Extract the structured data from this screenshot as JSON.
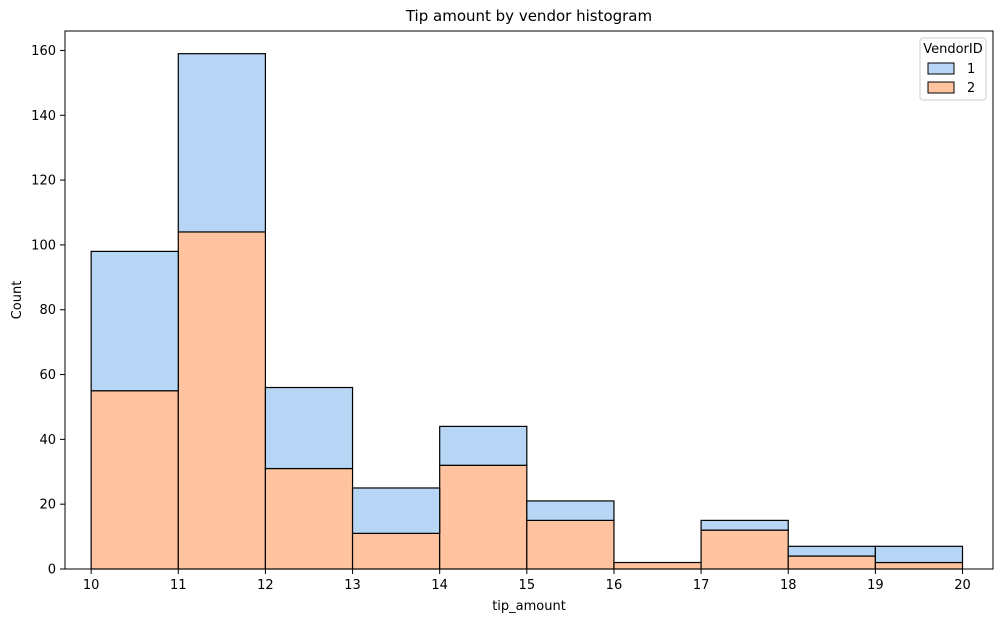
{
  "chart_data": {
    "type": "bar",
    "stacked": true,
    "title": "Tip amount by vendor histogram",
    "xlabel": "tip_amount",
    "ylabel": "Count",
    "xlim": [
      9.7,
      20.35
    ],
    "ylim": [
      0,
      166
    ],
    "x_ticks": [
      10,
      11,
      12,
      13,
      14,
      15,
      16,
      17,
      18,
      19,
      20
    ],
    "y_ticks": [
      0,
      20,
      40,
      60,
      80,
      100,
      120,
      140,
      160
    ],
    "bin_edges": [
      10,
      11,
      12,
      13,
      14,
      15,
      16,
      17,
      18,
      19,
      20
    ],
    "legend": {
      "title": "VendorID",
      "position": "top-right"
    },
    "series": [
      {
        "name": "2",
        "color": "#ffc49f",
        "values": [
          55,
          104,
          31,
          11,
          32,
          15,
          2,
          12,
          4,
          2
        ]
      },
      {
        "name": "1",
        "color": "#b7d5f4",
        "values": [
          43,
          55,
          25,
          14,
          12,
          6,
          0,
          3,
          3,
          5
        ]
      }
    ],
    "legend_order": [
      "1",
      "2"
    ],
    "grid": false
  }
}
